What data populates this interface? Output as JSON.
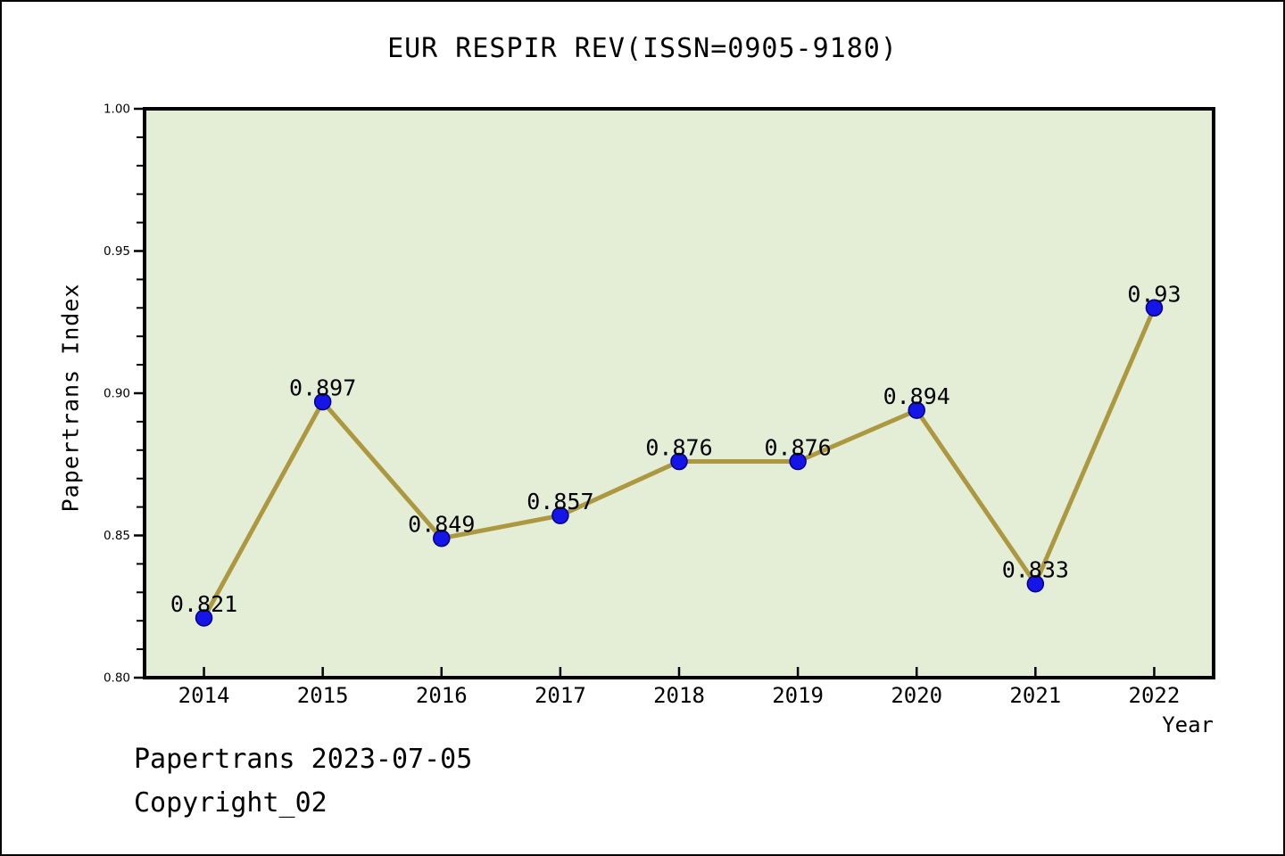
{
  "chart_data": {
    "type": "line",
    "title": "EUR RESPIR REV(ISSN=0905-9180)",
    "xlabel": "Year",
    "ylabel": "Papertrans Index",
    "x": [
      2014,
      2015,
      2016,
      2017,
      2018,
      2019,
      2020,
      2021,
      2022
    ],
    "x_tick_labels": [
      "2014",
      "2015",
      "2016",
      "2017",
      "2018",
      "2019",
      "2020",
      "2021",
      "2022"
    ],
    "values": [
      0.821,
      0.897,
      0.849,
      0.857,
      0.876,
      0.876,
      0.894,
      0.833,
      0.93
    ],
    "point_labels": [
      "0.821",
      "0.897",
      "0.849",
      "0.857",
      "0.876",
      "0.876",
      "0.894",
      "0.833",
      "0.93"
    ],
    "xlim": [
      2013.5,
      2022.5
    ],
    "ylim": [
      0.8,
      1.0
    ],
    "y_major_ticks": [
      0.8,
      0.85,
      0.9,
      0.95,
      1.0
    ],
    "y_major_tick_labels": [
      "0.80",
      "0.85",
      "0.90",
      "0.95",
      "1.00"
    ],
    "y_minor_step": 0.01,
    "grid": false,
    "legend": null,
    "marker": "circle",
    "colors": {
      "line": "#ac9840",
      "marker_fill": "#1515e8",
      "marker_edge": "#000080",
      "plot_bg": "#e4eed7",
      "figure_bg": "#ffffff",
      "axis": "#000000",
      "text": "#000000"
    }
  },
  "footer": {
    "line1": "Papertrans 2023-07-05",
    "line2": "Copyright_02"
  }
}
